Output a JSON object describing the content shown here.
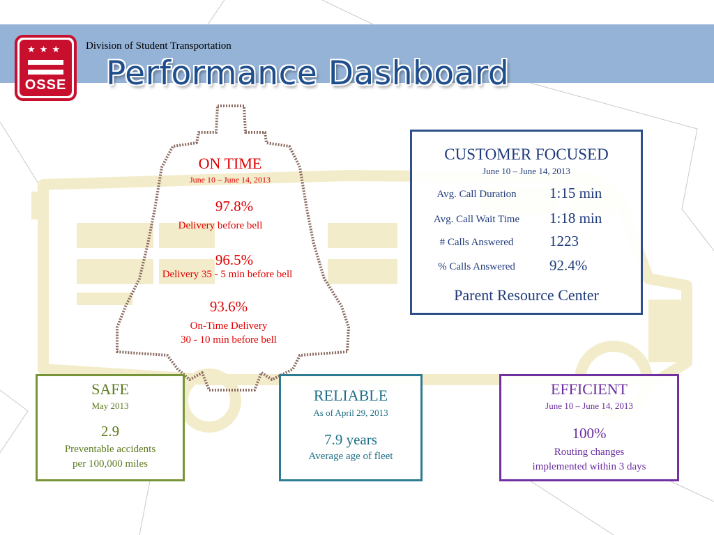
{
  "header": {
    "division": "Division of Student Transportation",
    "title": "Performance Dashboard",
    "logo_text": "OSSE",
    "logo_stars": "★★★"
  },
  "on_time": {
    "heading": "ON TIME",
    "period": "June 10 – June 14, 2013",
    "metrics": [
      {
        "value": "97.8%",
        "label": "Delivery before bell"
      },
      {
        "value": "96.5%",
        "label": "Delivery 35 - 5 min before bell"
      },
      {
        "value": "93.6%",
        "label": "On-Time Delivery",
        "label2": "30 - 10 min before bell"
      }
    ]
  },
  "customer_focused": {
    "heading": "CUSTOMER FOCUSED",
    "period": "June 10 – June 14, 2013",
    "rows": [
      {
        "label": "Avg. Call Duration",
        "value": "1:15 min"
      },
      {
        "label": "Avg. Call Wait Time",
        "value": "1:18 min"
      },
      {
        "label": "# Calls Answered",
        "value": "1223"
      },
      {
        "label": "% Calls Answered",
        "value": "92.4%"
      }
    ],
    "footer": "Parent Resource Center"
  },
  "safe": {
    "heading": "SAFE",
    "period": "May 2013",
    "value": "2.9",
    "label1": "Preventable accidents",
    "label2": "per 100,000 miles"
  },
  "reliable": {
    "heading": "RELIABLE",
    "period": "As of April 29, 2013",
    "value": "7.9 years",
    "label": "Average age of fleet"
  },
  "efficient": {
    "heading": "EFFICIENT",
    "period": "June 10 – June 14, 2013",
    "value": "100%",
    "label1": "Routing changes",
    "label2": "implemented within 3 days"
  },
  "colors": {
    "header_band": "#95b3d7",
    "title": "#1f4e8c",
    "logo_red": "#c8102e",
    "on_time_red": "#e00000",
    "customer_blue": "#1f3a7a",
    "safe_green": "#5b7a1e",
    "reliable_teal": "#1f6f86",
    "efficient_purple": "#6a2c9e",
    "bus_watermark": "#f3eccb"
  }
}
